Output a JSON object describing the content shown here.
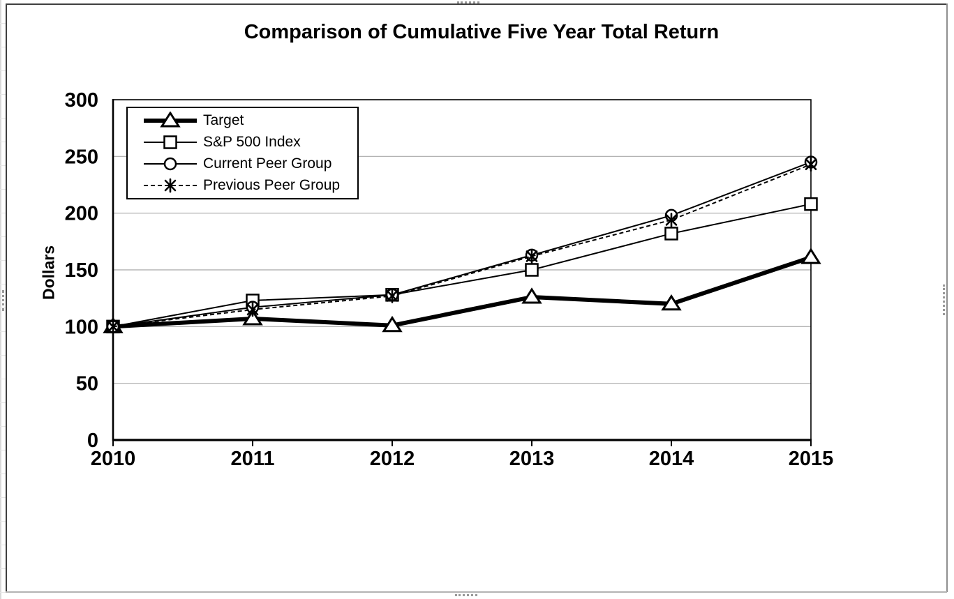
{
  "chart_data": {
    "type": "line",
    "title": "Comparison of Cumulative Five Year Total Return",
    "ylabel": "Dollars",
    "xlabel": "",
    "categories": [
      "2010",
      "2011",
      "2012",
      "2013",
      "2014",
      "2015"
    ],
    "y_ticks": [
      0,
      50,
      100,
      150,
      200,
      250,
      300
    ],
    "ylim": [
      0,
      300
    ],
    "grid": "horizontal",
    "grid_color": "#a8a8a8",
    "series_color": "#000000",
    "legend_position": "top-left",
    "series": [
      {
        "name": "Target",
        "marker": "triangle",
        "line": "solid-thick",
        "values": [
          100,
          107,
          101,
          126,
          120,
          161
        ]
      },
      {
        "name": "S&P 500 Index",
        "marker": "square",
        "line": "solid",
        "values": [
          100,
          123,
          128,
          150,
          182,
          208
        ]
      },
      {
        "name": "Current Peer Group",
        "marker": "circle",
        "line": "solid",
        "values": [
          100,
          117,
          128,
          163,
          198,
          245
        ]
      },
      {
        "name": "Previous Peer Group",
        "marker": "asterisk",
        "line": "dashed",
        "values": [
          100,
          115,
          127,
          162,
          194,
          243
        ]
      }
    ]
  }
}
